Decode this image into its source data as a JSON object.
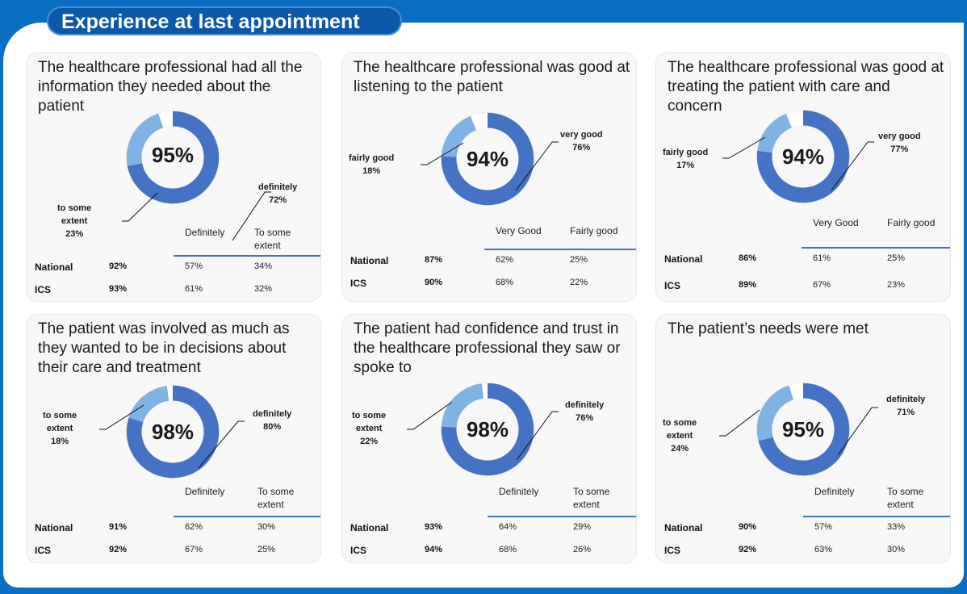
{
  "header": {
    "title": "Experience at last appointment"
  },
  "colors": {
    "primary": "#4472c4",
    "secondary": "#7fb3e6",
    "gap": "#ffffff",
    "rule": "#4472c4"
  },
  "chart_data": [
    {
      "type": "pie",
      "title": "The healthcare professional had all the information they needed about the patient",
      "total": "95%",
      "slices": [
        {
          "label": "definitely",
          "value": 72,
          "text": "72%"
        },
        {
          "label": "to some extent",
          "value": 23,
          "text": "23%"
        }
      ],
      "table": {
        "columns": [
          "Definitely",
          "To some extent"
        ],
        "rows": [
          {
            "name": "National",
            "total": "92%",
            "values": [
              "57%",
              "34%"
            ]
          },
          {
            "name": "ICS",
            "total": "93%",
            "values": [
              "61%",
              "32%"
            ]
          }
        ]
      }
    },
    {
      "type": "pie",
      "title": "The healthcare professional was good at listening to the patient",
      "total": "94%",
      "slices": [
        {
          "label": "very good",
          "value": 76,
          "text": "76%"
        },
        {
          "label": "fairly good",
          "value": 18,
          "text": "18%"
        }
      ],
      "table": {
        "columns": [
          "Very Good",
          "Fairly good"
        ],
        "rows": [
          {
            "name": "National",
            "total": "87%",
            "values": [
              "62%",
              "25%"
            ]
          },
          {
            "name": "ICS",
            "total": "90%",
            "values": [
              "68%",
              "22%"
            ]
          }
        ]
      }
    },
    {
      "type": "pie",
      "title": "The healthcare professional was good at treating the patient with care and concern",
      "total": "94%",
      "slices": [
        {
          "label": "very good",
          "value": 77,
          "text": "77%"
        },
        {
          "label": "fairly good",
          "value": 17,
          "text": "17%"
        }
      ],
      "table": {
        "columns": [
          "Very Good",
          "Fairly good"
        ],
        "rows": [
          {
            "name": "National",
            "total": "86%",
            "values": [
              "61%",
              "25%"
            ]
          },
          {
            "name": "ICS",
            "total": "89%",
            "values": [
              "67%",
              "23%"
            ]
          }
        ]
      }
    },
    {
      "type": "pie",
      "title": "The patient was involved as much as they wanted to be in decisions about their care and treatment",
      "total": "98%",
      "slices": [
        {
          "label": "definitely",
          "value": 80,
          "text": "80%"
        },
        {
          "label": "to some extent",
          "value": 18,
          "text": "18%"
        }
      ],
      "table": {
        "columns": [
          "Definitely",
          "To some extent"
        ],
        "rows": [
          {
            "name": "National",
            "total": "91%",
            "values": [
              "62%",
              "30%"
            ]
          },
          {
            "name": "ICS",
            "total": "92%",
            "values": [
              "67%",
              "25%"
            ]
          }
        ]
      }
    },
    {
      "type": "pie",
      "title": "The patient had confidence and trust in the healthcare professional they saw or spoke to",
      "total": "98%",
      "slices": [
        {
          "label": "definitely",
          "value": 76,
          "text": "76%"
        },
        {
          "label": "to some extent",
          "value": 22,
          "text": "22%"
        }
      ],
      "table": {
        "columns": [
          "Definitely",
          "To some extent"
        ],
        "rows": [
          {
            "name": "National",
            "total": "93%",
            "values": [
              "64%",
              "29%"
            ]
          },
          {
            "name": "ICS",
            "total": "94%",
            "values": [
              "68%",
              "26%"
            ]
          }
        ]
      }
    },
    {
      "type": "pie",
      "title": "The patient’s needs were met",
      "total": "95%",
      "slices": [
        {
          "label": "definitely",
          "value": 71,
          "text": "71%"
        },
        {
          "label": "to some extent",
          "value": 24,
          "text": "24%"
        }
      ],
      "table": {
        "columns": [
          "Definitely",
          "To some extent"
        ],
        "rows": [
          {
            "name": "National",
            "total": "90%",
            "values": [
              "57%",
              "33%"
            ]
          },
          {
            "name": "ICS",
            "total": "92%",
            "values": [
              "63%",
              "30%"
            ]
          }
        ]
      }
    }
  ]
}
